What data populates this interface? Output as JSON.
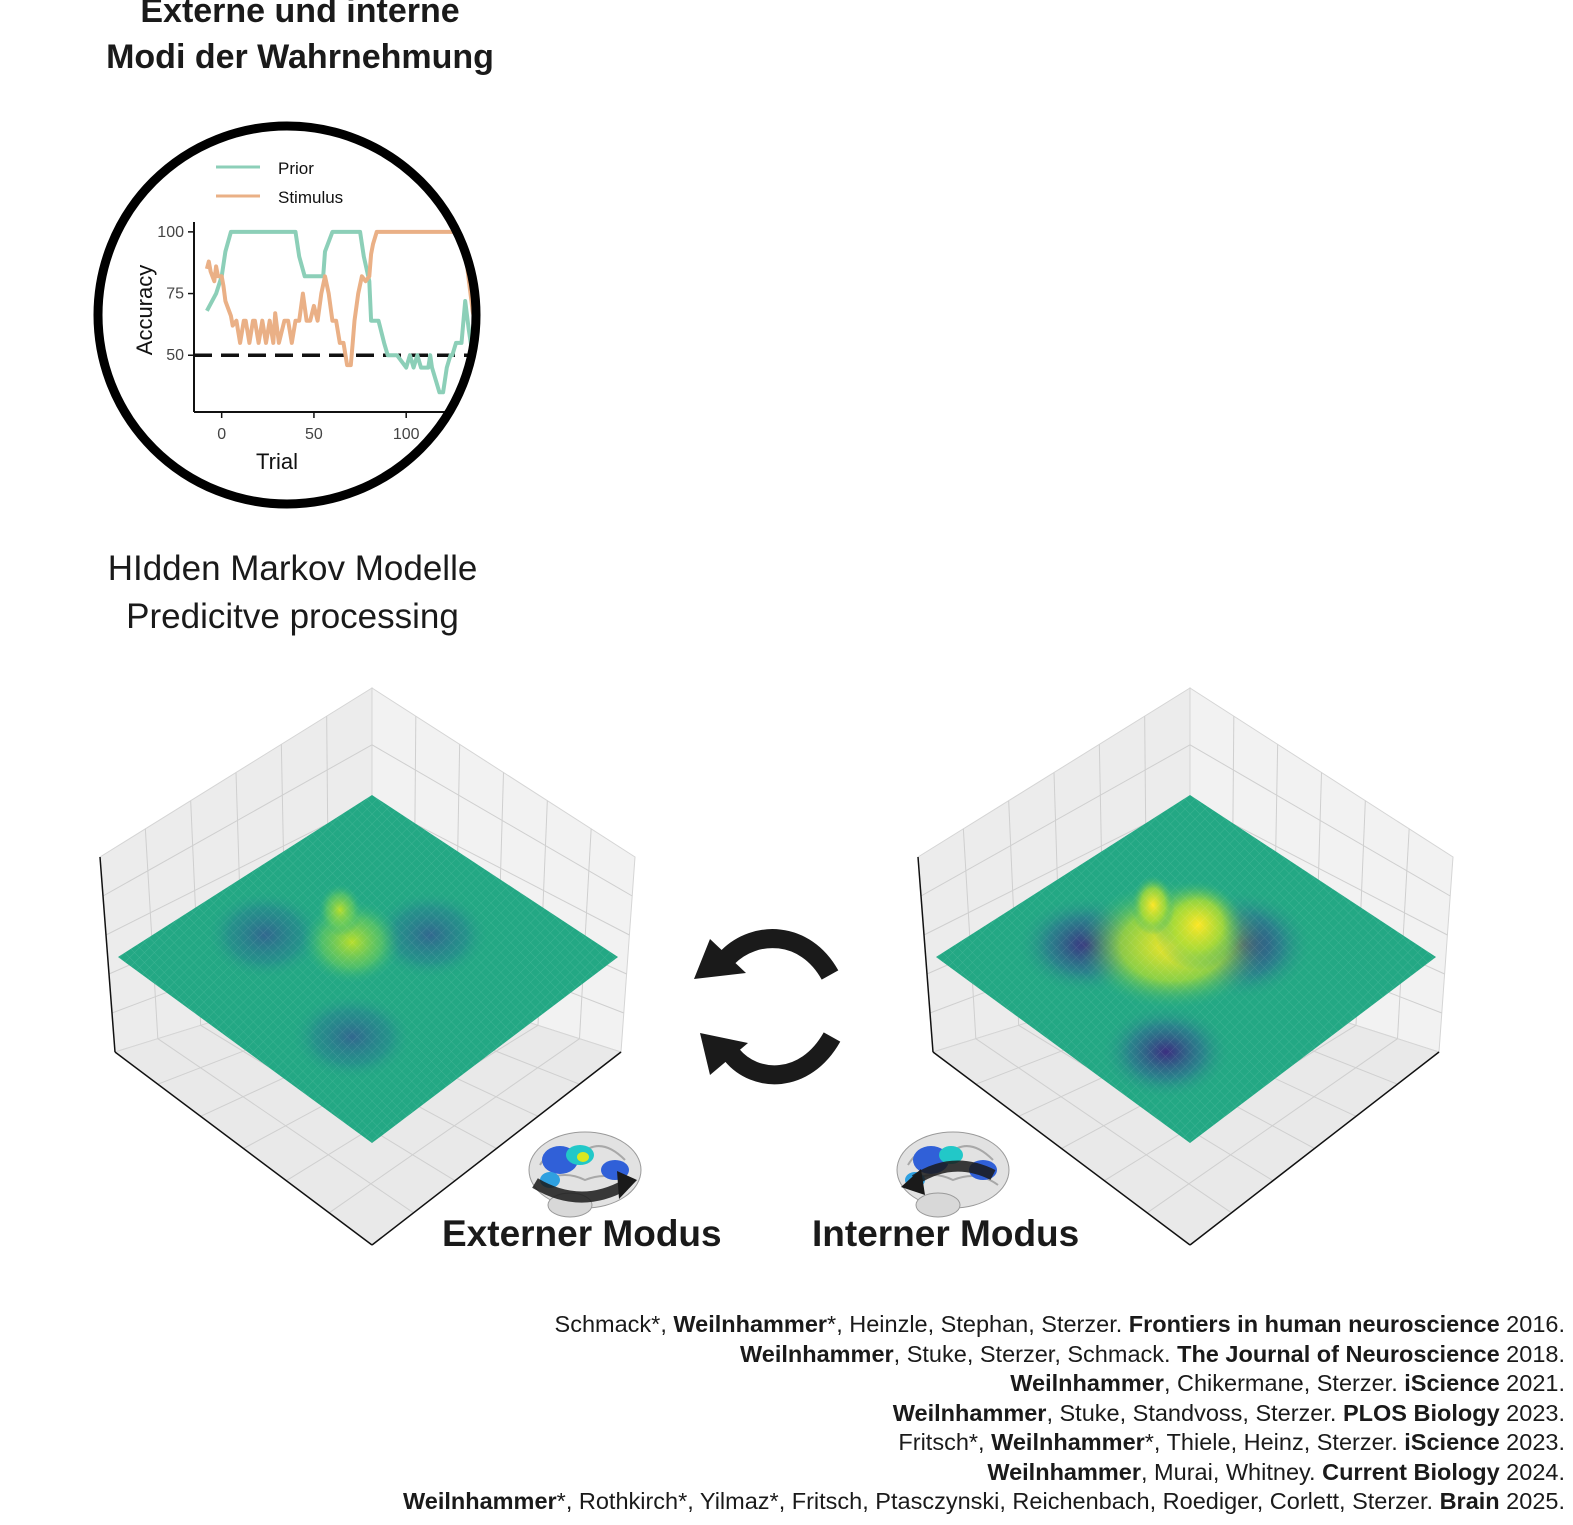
{
  "title": [
    "Externe und interne",
    "Modi der Wahrnehmung"
  ],
  "subtitle": [
    "HIdden Markov Modelle",
    "Predicitve processing"
  ],
  "chart_data": {
    "type": "line",
    "xlabel": "Trial",
    "ylabel": "Accuracy",
    "xticks": [
      0,
      50,
      100
    ],
    "yticks": [
      50,
      75,
      100
    ],
    "xlim": [
      -15,
      140
    ],
    "ylim": [
      27,
      104
    ],
    "reference_line": {
      "y": 50,
      "style": "dashed"
    },
    "legend_placement": "top-left",
    "series": [
      {
        "name": "Prior",
        "color": "#8ccfb8",
        "x": [
          -8,
          -3,
          0,
          2,
          5,
          10,
          20,
          30,
          40,
          42,
          45,
          50,
          55,
          56,
          60,
          65,
          70,
          75,
          77,
          80,
          81,
          85,
          88,
          90,
          92,
          95,
          100,
          102,
          104,
          106,
          108,
          110,
          112,
          113,
          114,
          116,
          118,
          120,
          122,
          124,
          125,
          127,
          130,
          132,
          134,
          136,
          138
        ],
        "y": [
          68,
          75,
          82,
          92,
          100,
          100,
          100,
          100,
          100,
          90,
          82,
          82,
          82,
          92,
          100,
          100,
          100,
          100,
          90,
          80,
          64,
          64,
          55,
          50,
          50,
          50,
          45,
          50,
          45,
          50,
          45,
          45,
          45,
          50,
          45,
          40,
          35,
          35,
          45,
          50,
          50,
          55,
          55,
          72,
          60,
          50,
          38
        ]
      },
      {
        "name": "Stimulus",
        "color": "#eab086",
        "x": [
          -8,
          -7,
          -6,
          -4,
          -3,
          -2,
          0,
          1,
          2,
          3,
          5,
          6,
          8,
          10,
          12,
          13,
          15,
          17,
          18,
          20,
          22,
          24,
          26,
          28,
          29,
          31,
          34,
          36,
          38,
          40,
          42,
          44,
          46,
          48,
          50,
          52,
          54,
          56,
          58,
          60,
          62,
          64,
          66,
          68,
          70,
          71,
          72,
          74,
          76,
          78,
          80,
          81,
          82,
          84,
          85,
          86,
          87,
          88,
          90,
          92,
          95,
          100,
          105,
          110,
          120,
          130,
          131,
          132,
          133,
          134,
          135,
          136,
          138
        ],
        "y": [
          85,
          88,
          84,
          80,
          86,
          82,
          82,
          78,
          72,
          70,
          66,
          62,
          64,
          55,
          64,
          64,
          55,
          64,
          64,
          55,
          64,
          55,
          64,
          55,
          67,
          55,
          64,
          64,
          55,
          64,
          64,
          75,
          64,
          64,
          70,
          64,
          75,
          82,
          75,
          64,
          64,
          55,
          55,
          46,
          46,
          55,
          64,
          75,
          82,
          80,
          82,
          91,
          95,
          100,
          100,
          100,
          100,
          100,
          100,
          100,
          100,
          100,
          100,
          100,
          100,
          100,
          98,
          92,
          86,
          80,
          74,
          68,
          60
        ]
      }
    ]
  },
  "arrows_label": "cycle-arrows",
  "modes": {
    "external": "Externer Modus",
    "internal": "Interner Modus"
  },
  "references": [
    [
      {
        "t": "Schmack*, ",
        "b": false
      },
      {
        "t": "Weilnhammer",
        "b": true
      },
      {
        "t": "*, Heinzle, Stephan, Sterzer. ",
        "b": false
      },
      {
        "t": "Frontiers in human neuroscience",
        "b": true
      },
      {
        "t": " 2016.",
        "b": false
      }
    ],
    [
      {
        "t": "Weilnhammer",
        "b": true
      },
      {
        "t": ", Stuke,  Sterzer,  Schmack. ",
        "b": false
      },
      {
        "t": "The Journal of Neuroscience",
        "b": true
      },
      {
        "t": " 2018.",
        "b": false
      }
    ],
    [
      {
        "t": "Weilnhammer",
        "b": true
      },
      {
        "t": ", Chikermane, Sterzer. ",
        "b": false
      },
      {
        "t": "iScience",
        "b": true
      },
      {
        "t": " 2021.",
        "b": false
      }
    ],
    [
      {
        "t": "Weilnhammer",
        "b": true
      },
      {
        "t": ", Stuke, Standvoss, Sterzer. ",
        "b": false
      },
      {
        "t": "PLOS Biology",
        "b": true
      },
      {
        "t": " 2023.",
        "b": false
      }
    ],
    [
      {
        "t": "Fritsch*, ",
        "b": false
      },
      {
        "t": "Weilnhammer",
        "b": true
      },
      {
        "t": "*, Thiele, Heinz, Sterzer. ",
        "b": false
      },
      {
        "t": "iScience",
        "b": true
      },
      {
        "t": " 2023.",
        "b": false
      }
    ],
    [
      {
        "t": "Weilnhammer",
        "b": true
      },
      {
        "t": ", Murai, Whitney. ",
        "b": false
      },
      {
        "t": "Current Biology",
        "b": true
      },
      {
        "t": " 2024.",
        "b": false
      }
    ],
    [
      {
        "t": "Weilnhammer",
        "b": true
      },
      {
        "t": "*, Rothkirch*, Yilmaz*, Fritsch, Ptasczynski, Reichenbach, Roediger, Corlett, Sterzer. ",
        "b": false
      },
      {
        "t": "Brain",
        "b": true
      },
      {
        "t": " 2025.",
        "b": false
      }
    ]
  ]
}
